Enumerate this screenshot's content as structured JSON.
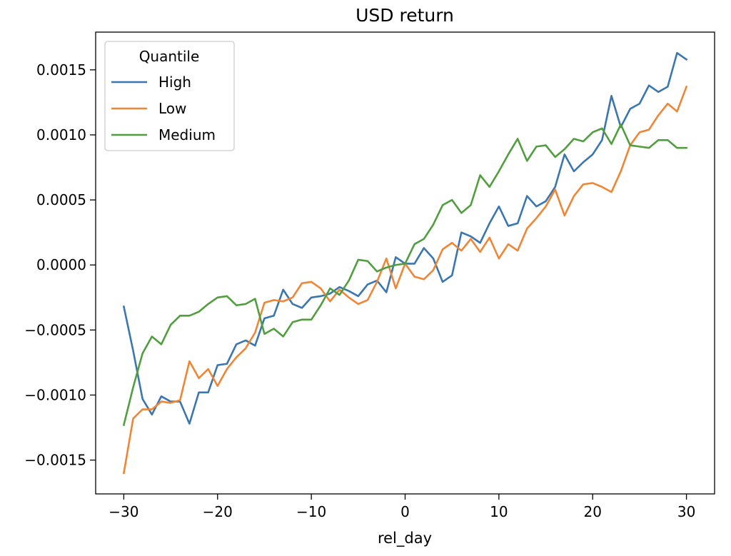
{
  "chart_data": {
    "type": "line",
    "title": "USD return",
    "xlabel": "rel_day",
    "ylabel": "",
    "xlim": [
      -33,
      33
    ],
    "ylim": [
      -0.00176,
      0.00179
    ],
    "grid": false,
    "x_ticks": [
      -30,
      -20,
      -10,
      0,
      10,
      20,
      30
    ],
    "x_tick_labels": [
      "−30",
      "−20",
      "−10",
      "0",
      "10",
      "20",
      "30"
    ],
    "y_ticks": [
      -0.0015,
      -0.001,
      -0.0005,
      0.0,
      0.0005,
      0.001,
      0.0015
    ],
    "y_tick_labels": [
      "−0.0015",
      "−0.0010",
      "−0.0005",
      "0.0000",
      "0.0005",
      "0.0010",
      "0.0015"
    ],
    "legend": {
      "title": "Quantile",
      "position": "top-left"
    },
    "x": [
      -30,
      -29,
      -28,
      -27,
      -26,
      -25,
      -24,
      -23,
      -22,
      -21,
      -20,
      -19,
      -18,
      -17,
      -16,
      -15,
      -14,
      -13,
      -12,
      -11,
      -10,
      -9,
      -8,
      -7,
      -6,
      -5,
      -4,
      -3,
      -2,
      -1,
      0,
      1,
      2,
      3,
      4,
      5,
      6,
      7,
      8,
      9,
      10,
      11,
      12,
      13,
      14,
      15,
      16,
      17,
      18,
      19,
      20,
      21,
      22,
      23,
      24,
      25,
      26,
      27,
      28,
      29,
      30
    ],
    "series": [
      {
        "name": "High",
        "color": "#3a76af",
        "values": [
          -0.00032,
          -0.00066,
          -0.00103,
          -0.00115,
          -0.00101,
          -0.00105,
          -0.00105,
          -0.00122,
          -0.00098,
          -0.00098,
          -0.00077,
          -0.00076,
          -0.00061,
          -0.00058,
          -0.00062,
          -0.00041,
          -0.00039,
          -0.00019,
          -0.0003,
          -0.00033,
          -0.00025,
          -0.00024,
          -0.00022,
          -0.00017,
          -0.0002,
          -0.00024,
          -0.00015,
          -0.00012,
          -0.00021,
          6e-05,
          1e-05,
          1e-05,
          0.00013,
          5e-05,
          -0.00013,
          -8e-05,
          0.00025,
          0.00022,
          0.00017,
          0.00032,
          0.00045,
          0.0003,
          0.00032,
          0.00053,
          0.00045,
          0.00049,
          0.0006,
          0.00085,
          0.00072,
          0.00079,
          0.00085,
          0.00096,
          0.0013,
          0.00106,
          0.0012,
          0.00124,
          0.00138,
          0.00133,
          0.00137,
          0.00163,
          0.00158
        ]
      },
      {
        "name": "Low",
        "color": "#ef8636",
        "values": [
          -0.0016,
          -0.00118,
          -0.00111,
          -0.00111,
          -0.00105,
          -0.00106,
          -0.00104,
          -0.00074,
          -0.00087,
          -0.0008,
          -0.00093,
          -0.0008,
          -0.00071,
          -0.00064,
          -0.00052,
          -0.00029,
          -0.00027,
          -0.00028,
          -0.00025,
          -0.00014,
          -0.00013,
          -0.00018,
          -0.00028,
          -0.00019,
          -0.00025,
          -0.0003,
          -0.00027,
          -0.00013,
          5e-05,
          -0.00018,
          1e-05,
          -9e-05,
          -0.00011,
          -4e-05,
          0.00012,
          0.00017,
          0.00011,
          0.0002,
          0.0001,
          0.00021,
          5e-05,
          0.00016,
          0.00011,
          0.00028,
          0.00036,
          0.00045,
          0.00058,
          0.00038,
          0.00053,
          0.00062,
          0.00063,
          0.0006,
          0.00056,
          0.00072,
          0.00092,
          0.00102,
          0.00104,
          0.00115,
          0.00124,
          0.00118,
          0.00137
        ]
      },
      {
        "name": "Medium",
        "color": "#519e3e",
        "values": [
          -0.00123,
          -0.00094,
          -0.00068,
          -0.00055,
          -0.00061,
          -0.00046,
          -0.00039,
          -0.00039,
          -0.00036,
          -0.0003,
          -0.00025,
          -0.00024,
          -0.00031,
          -0.0003,
          -0.00026,
          -0.00053,
          -0.00049,
          -0.00055,
          -0.00044,
          -0.00042,
          -0.00042,
          -0.00031,
          -0.00018,
          -0.00023,
          -0.00012,
          4e-05,
          3e-05,
          -5e-05,
          -2e-05,
          0.0,
          1e-05,
          0.00016,
          0.0002,
          0.00031,
          0.00046,
          0.0005,
          0.0004,
          0.00046,
          0.00069,
          0.0006,
          0.00072,
          0.00085,
          0.00097,
          0.0008,
          0.00091,
          0.00092,
          0.00083,
          0.00089,
          0.00097,
          0.00095,
          0.00102,
          0.00105,
          0.00093,
          0.00108,
          0.00092,
          0.00091,
          0.0009,
          0.00096,
          0.00096,
          0.0009,
          0.0009
        ]
      }
    ]
  }
}
